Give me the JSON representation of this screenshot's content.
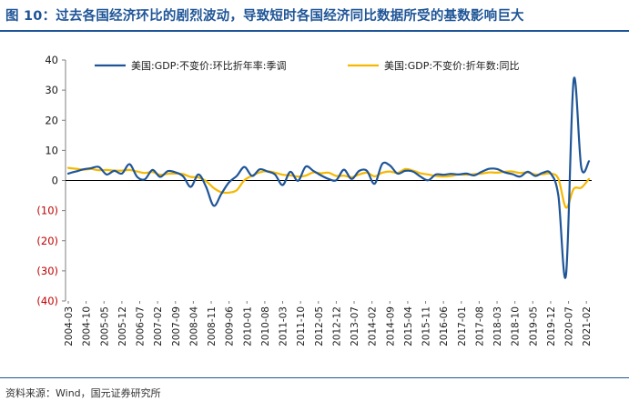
{
  "title": "图 10：过去各国经济环比的剧烈波动，导致短时各国经济同比数据所受的基数影响巨大",
  "source": "资料来源：Wind，国元证券研究所",
  "chart_data": {
    "type": "line",
    "y_ticks": [
      "40",
      "30",
      "20",
      "10",
      "0",
      "(10)",
      "(20)",
      "(30)",
      "(40)"
    ],
    "ylim": [
      -40,
      40
    ],
    "x_start": "2004-03",
    "x_ticks": [
      "2004-03",
      "2004-10",
      "2005-05",
      "2005-12",
      "2006-07",
      "2007-02",
      "2007-09",
      "2008-04",
      "2008-11",
      "2009-06",
      "2010-01",
      "2010-08",
      "2011-03",
      "2011-10",
      "2012-05",
      "2012-12",
      "2013-07",
      "2014-02",
      "2014-09",
      "2015-04",
      "2015-11",
      "2016-06",
      "2017-01",
      "2017-08",
      "2018-03",
      "2018-10",
      "2019-05",
      "2019-12",
      "2020-07",
      "2021-02"
    ],
    "legend_position": "top",
    "series": [
      {
        "name": "美国:GDP:不变价:环比折年率:季调",
        "color": "#1f5597",
        "x": [
          "2004-03",
          "2004-06",
          "2004-09",
          "2004-12",
          "2005-03",
          "2005-06",
          "2005-09",
          "2005-12",
          "2006-03",
          "2006-06",
          "2006-09",
          "2006-12",
          "2007-03",
          "2007-06",
          "2007-09",
          "2007-12",
          "2008-03",
          "2008-06",
          "2008-09",
          "2008-12",
          "2009-03",
          "2009-06",
          "2009-09",
          "2009-12",
          "2010-03",
          "2010-06",
          "2010-09",
          "2010-12",
          "2011-03",
          "2011-06",
          "2011-09",
          "2011-12",
          "2012-03",
          "2012-06",
          "2012-09",
          "2012-12",
          "2013-03",
          "2013-06",
          "2013-09",
          "2013-12",
          "2014-03",
          "2014-06",
          "2014-09",
          "2014-12",
          "2015-03",
          "2015-06",
          "2015-09",
          "2015-12",
          "2016-03",
          "2016-06",
          "2016-09",
          "2016-12",
          "2017-03",
          "2017-06",
          "2017-09",
          "2017-12",
          "2018-03",
          "2018-06",
          "2018-09",
          "2018-12",
          "2019-03",
          "2019-06",
          "2019-09",
          "2019-12",
          "2020-03",
          "2020-06",
          "2020-09",
          "2020-12",
          "2021-03"
        ],
        "values": [
          2.3,
          3.0,
          3.7,
          4.1,
          4.5,
          2.0,
          3.2,
          2.3,
          5.4,
          1.2,
          0.4,
          3.5,
          1.2,
          3.1,
          2.7,
          1.4,
          -2.1,
          2.0,
          -2.1,
          -8.4,
          -4.4,
          -0.6,
          1.5,
          4.5,
          1.5,
          3.7,
          3.0,
          2.0,
          -1.5,
          2.9,
          -0.1,
          4.6,
          3.2,
          1.7,
          0.5,
          0.1,
          3.6,
          0.5,
          3.2,
          3.2,
          -1.1,
          5.5,
          5.0,
          2.3,
          3.2,
          3.0,
          1.3,
          0.1,
          2.0,
          1.9,
          2.2,
          2.0,
          2.3,
          1.7,
          2.9,
          3.9,
          3.8,
          2.7,
          2.1,
          1.3,
          2.9,
          1.5,
          2.6,
          2.4,
          -5.0,
          -31.4,
          33.4,
          4.3,
          6.4
        ]
      },
      {
        "name": "美国:GDP:不变价:折年数:同比",
        "color": "#f5b800",
        "x": [
          "2004-03",
          "2004-06",
          "2004-09",
          "2004-12",
          "2005-03",
          "2005-06",
          "2005-09",
          "2005-12",
          "2006-03",
          "2006-06",
          "2006-09",
          "2006-12",
          "2007-03",
          "2007-06",
          "2007-09",
          "2007-12",
          "2008-03",
          "2008-06",
          "2008-09",
          "2008-12",
          "2009-03",
          "2009-06",
          "2009-09",
          "2009-12",
          "2010-03",
          "2010-06",
          "2010-09",
          "2010-12",
          "2011-03",
          "2011-06",
          "2011-09",
          "2011-12",
          "2012-03",
          "2012-06",
          "2012-09",
          "2012-12",
          "2013-03",
          "2013-06",
          "2013-09",
          "2013-12",
          "2014-03",
          "2014-06",
          "2014-09",
          "2014-12",
          "2015-03",
          "2015-06",
          "2015-09",
          "2015-12",
          "2016-03",
          "2016-06",
          "2016-09",
          "2016-12",
          "2017-03",
          "2017-06",
          "2017-09",
          "2017-12",
          "2018-03",
          "2018-06",
          "2018-09",
          "2018-12",
          "2019-03",
          "2019-06",
          "2019-09",
          "2019-12",
          "2020-03",
          "2020-06",
          "2020-09",
          "2020-12",
          "2021-03"
        ],
        "values": [
          4.2,
          3.9,
          3.6,
          3.8,
          3.4,
          3.5,
          3.3,
          3.3,
          3.5,
          3.0,
          2.5,
          2.8,
          1.9,
          2.2,
          2.3,
          2.1,
          1.2,
          1.0,
          -0.2,
          -2.5,
          -3.9,
          -4.0,
          -3.2,
          0.1,
          1.6,
          2.7,
          3.1,
          2.6,
          1.9,
          1.7,
          1.3,
          1.6,
          2.7,
          2.4,
          2.6,
          1.5,
          1.6,
          1.1,
          2.0,
          2.6,
          1.4,
          2.6,
          3.0,
          2.5,
          3.8,
          3.3,
          2.4,
          2.0,
          1.5,
          1.3,
          1.5,
          2.0,
          1.9,
          2.1,
          2.3,
          2.7,
          2.6,
          2.9,
          3.0,
          2.5,
          2.7,
          2.0,
          2.1,
          2.3,
          0.6,
          -9.0,
          -2.8,
          -2.4,
          0.5
        ]
      }
    ]
  }
}
